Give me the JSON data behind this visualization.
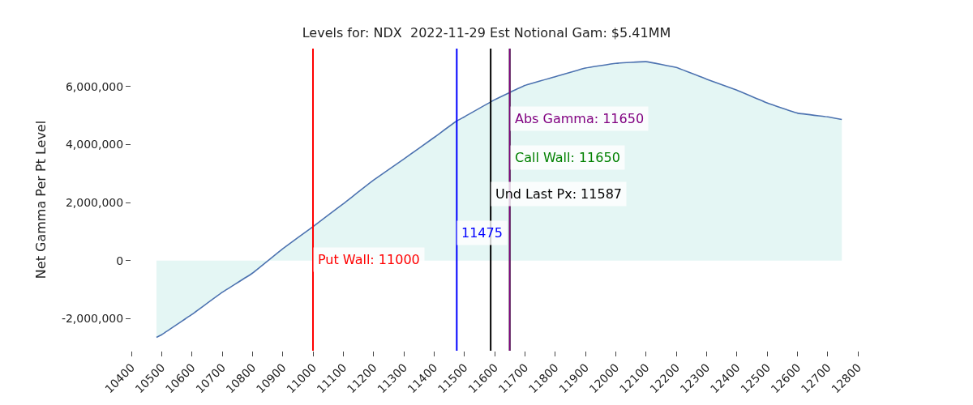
{
  "chart_data": {
    "type": "area",
    "title": "Levels for: NDX  2022-11-29 Est Notional Gam: $5.41MM",
    "ylabel": "Net Gamma Per Pt Level",
    "x": [
      10483,
      10500,
      10600,
      10700,
      10800,
      10900,
      11000,
      11100,
      11200,
      11300,
      11400,
      11475,
      11500,
      11600,
      11700,
      11800,
      11900,
      12000,
      12100,
      12200,
      12300,
      12400,
      12500,
      12600,
      12700,
      12747
    ],
    "series": [
      {
        "color": "#4c72b0",
        "values": [
          -2640000,
          -2550000,
          -1850000,
          -1090000,
          -430000,
          410000,
          1170000,
          1960000,
          2770000,
          3500000,
          4240000,
          4810000,
          4950000,
          5540000,
          6030000,
          6330000,
          6630000,
          6790000,
          6850000,
          6650000,
          6250000,
          5870000,
          5430000,
          5080000,
          4950000,
          4860000
        ]
      }
    ],
    "xlim": [
      10400,
      12800
    ],
    "xticks": [
      10400,
      10500,
      10600,
      10700,
      10800,
      10900,
      11000,
      11100,
      11200,
      11300,
      11400,
      11500,
      11600,
      11700,
      11800,
      11900,
      12000,
      12100,
      12200,
      12300,
      12400,
      12500,
      12600,
      12700,
      12800
    ],
    "ylim": [
      -3100000,
      7300000
    ],
    "yticks": [
      {
        "value": -2000000,
        "label": "-2,000,000"
      },
      {
        "value": 0,
        "label": "0"
      },
      {
        "value": 2000000,
        "label": "2,000,000"
      },
      {
        "value": 4000000,
        "label": "4,000,000"
      },
      {
        "value": 6000000,
        "label": "6,000,000"
      }
    ],
    "ref_lines": [
      {
        "axis": "x",
        "value": 11000,
        "label": "Put Wall: 11000",
        "color": "#ff0000"
      },
      {
        "axis": "x",
        "value": 11475,
        "label": "11475",
        "color": "#0000ff"
      },
      {
        "axis": "x",
        "value": 11587,
        "label": "Und Last Px: 11587",
        "color": "#000000"
      },
      {
        "axis": "x",
        "value": 11650,
        "label": "Call Wall: 11650",
        "color": "#008000"
      },
      {
        "axis": "x",
        "value": 11650,
        "label": "Abs Gamma: 11650",
        "color": "#800080"
      }
    ],
    "legend": false
  }
}
